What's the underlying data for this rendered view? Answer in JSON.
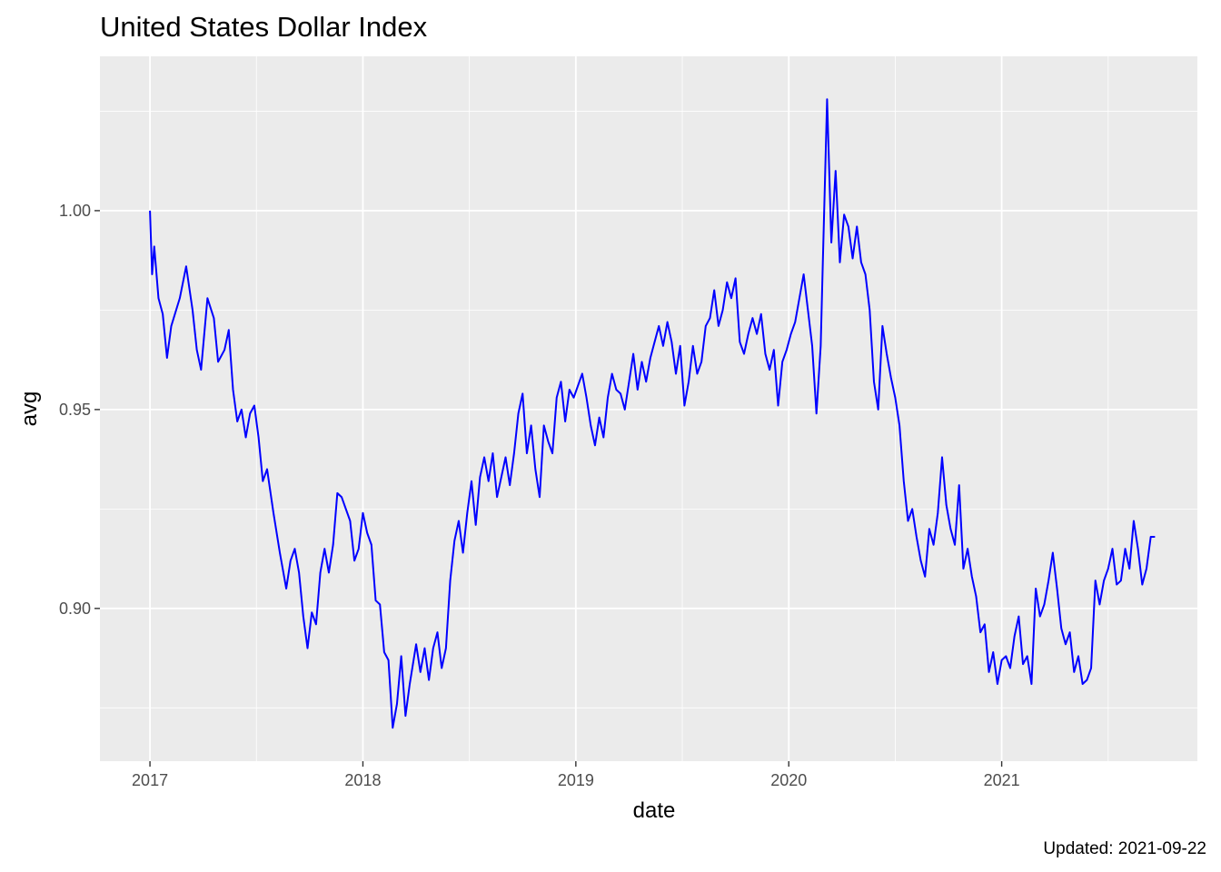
{
  "chart_data": {
    "type": "line",
    "title": "United States Dollar Index",
    "caption": "Updated: 2021-09-22",
    "xlabel": "date",
    "ylabel": "avg",
    "color": "#0000ff",
    "grid": true,
    "xlim": [
      2016.765,
      2021.919
    ],
    "ylim": [
      0.8616,
      1.0388
    ],
    "xticks": [
      2017,
      2018,
      2019,
      2020,
      2021
    ],
    "yticks": [
      {
        "value": 0.9,
        "label": "0.90"
      },
      0.95,
      {
        "value": 1.0,
        "label": "1.00"
      }
    ],
    "x": [
      2017.0,
      2017.01,
      2017.02,
      2017.04,
      2017.06,
      2017.08,
      2017.1,
      2017.14,
      2017.17,
      2017.2,
      2017.22,
      2017.24,
      2017.27,
      2017.3,
      2017.32,
      2017.35,
      2017.37,
      2017.39,
      2017.41,
      2017.43,
      2017.45,
      2017.47,
      2017.49,
      2017.51,
      2017.53,
      2017.55,
      2017.58,
      2017.61,
      2017.64,
      2017.66,
      2017.68,
      2017.7,
      2017.72,
      2017.74,
      2017.76,
      2017.78,
      2017.8,
      2017.82,
      2017.84,
      2017.86,
      2017.88,
      2017.9,
      2017.92,
      2017.94,
      2017.96,
      2017.98,
      2018.0,
      2018.02,
      2018.04,
      2018.06,
      2018.08,
      2018.1,
      2018.12,
      2018.14,
      2018.16,
      2018.18,
      2018.2,
      2018.22,
      2018.25,
      2018.27,
      2018.29,
      2018.31,
      2018.33,
      2018.35,
      2018.37,
      2018.39,
      2018.41,
      2018.43,
      2018.45,
      2018.47,
      2018.49,
      2018.51,
      2018.53,
      2018.55,
      2018.57,
      2018.59,
      2018.61,
      2018.63,
      2018.65,
      2018.67,
      2018.69,
      2018.71,
      2018.73,
      2018.75,
      2018.77,
      2018.79,
      2018.81,
      2018.83,
      2018.85,
      2018.87,
      2018.89,
      2018.91,
      2018.93,
      2018.95,
      2018.97,
      2018.99,
      2019.01,
      2019.03,
      2019.05,
      2019.07,
      2019.09,
      2019.11,
      2019.13,
      2019.15,
      2019.17,
      2019.19,
      2019.21,
      2019.23,
      2019.25,
      2019.27,
      2019.29,
      2019.31,
      2019.33,
      2019.35,
      2019.37,
      2019.39,
      2019.41,
      2019.43,
      2019.45,
      2019.47,
      2019.49,
      2019.51,
      2019.53,
      2019.55,
      2019.57,
      2019.59,
      2019.61,
      2019.63,
      2019.65,
      2019.67,
      2019.69,
      2019.71,
      2019.73,
      2019.75,
      2019.77,
      2019.79,
      2019.81,
      2019.83,
      2019.85,
      2019.87,
      2019.89,
      2019.91,
      2019.93,
      2019.95,
      2019.97,
      2019.99,
      2020.01,
      2020.03,
      2020.05,
      2020.07,
      2020.09,
      2020.11,
      2020.13,
      2020.15,
      2020.16,
      2020.18,
      2020.2,
      2020.22,
      2020.24,
      2020.26,
      2020.28,
      2020.3,
      2020.32,
      2020.34,
      2020.36,
      2020.38,
      2020.4,
      2020.42,
      2020.44,
      2020.46,
      2020.48,
      2020.5,
      2020.52,
      2020.54,
      2020.56,
      2020.58,
      2020.6,
      2020.62,
      2020.64,
      2020.66,
      2020.68,
      2020.7,
      2020.72,
      2020.74,
      2020.76,
      2020.78,
      2020.8,
      2020.82,
      2020.84,
      2020.86,
      2020.88,
      2020.9,
      2020.92,
      2020.94,
      2020.96,
      2020.98,
      2021.0,
      2021.02,
      2021.04,
      2021.06,
      2021.08,
      2021.1,
      2021.12,
      2021.14,
      2021.16,
      2021.18,
      2021.2,
      2021.22,
      2021.24,
      2021.26,
      2021.28,
      2021.3,
      2021.32,
      2021.34,
      2021.36,
      2021.38,
      2021.4,
      2021.42,
      2021.44,
      2021.46,
      2021.48,
      2021.5,
      2021.52,
      2021.54,
      2021.56,
      2021.58,
      2021.6,
      2021.62,
      2021.64,
      2021.66,
      2021.68,
      2021.7,
      2021.72
    ],
    "values": [
      1.0,
      0.984,
      0.991,
      0.978,
      0.974,
      0.963,
      0.971,
      0.978,
      0.986,
      0.975,
      0.965,
      0.96,
      0.978,
      0.973,
      0.962,
      0.965,
      0.97,
      0.955,
      0.947,
      0.95,
      0.943,
      0.949,
      0.951,
      0.943,
      0.932,
      0.935,
      0.924,
      0.914,
      0.905,
      0.912,
      0.915,
      0.909,
      0.898,
      0.89,
      0.899,
      0.896,
      0.909,
      0.915,
      0.909,
      0.916,
      0.929,
      0.928,
      0.925,
      0.922,
      0.912,
      0.915,
      0.924,
      0.919,
      0.916,
      0.902,
      0.901,
      0.889,
      0.887,
      0.87,
      0.876,
      0.888,
      0.873,
      0.881,
      0.891,
      0.884,
      0.89,
      0.882,
      0.89,
      0.894,
      0.885,
      0.89,
      0.907,
      0.917,
      0.922,
      0.914,
      0.924,
      0.932,
      0.921,
      0.933,
      0.938,
      0.932,
      0.939,
      0.928,
      0.933,
      0.938,
      0.931,
      0.939,
      0.949,
      0.954,
      0.939,
      0.946,
      0.935,
      0.928,
      0.946,
      0.942,
      0.939,
      0.953,
      0.957,
      0.947,
      0.955,
      0.953,
      0.956,
      0.959,
      0.953,
      0.946,
      0.941,
      0.948,
      0.943,
      0.953,
      0.959,
      0.955,
      0.954,
      0.95,
      0.957,
      0.964,
      0.955,
      0.962,
      0.957,
      0.963,
      0.967,
      0.971,
      0.966,
      0.972,
      0.967,
      0.959,
      0.966,
      0.951,
      0.957,
      0.966,
      0.959,
      0.962,
      0.971,
      0.973,
      0.98,
      0.971,
      0.975,
      0.982,
      0.978,
      0.983,
      0.967,
      0.964,
      0.969,
      0.973,
      0.969,
      0.974,
      0.964,
      0.96,
      0.965,
      0.951,
      0.962,
      0.965,
      0.969,
      0.972,
      0.978,
      0.984,
      0.975,
      0.966,
      0.949,
      0.966,
      0.987,
      1.028,
      0.992,
      1.01,
      0.987,
      0.999,
      0.996,
      0.988,
      0.996,
      0.987,
      0.984,
      0.975,
      0.957,
      0.95,
      0.971,
      0.964,
      0.958,
      0.953,
      0.946,
      0.932,
      0.922,
      0.925,
      0.918,
      0.912,
      0.908,
      0.92,
      0.916,
      0.924,
      0.938,
      0.926,
      0.92,
      0.916,
      0.931,
      0.91,
      0.915,
      0.908,
      0.903,
      0.894,
      0.896,
      0.884,
      0.889,
      0.881,
      0.887,
      0.888,
      0.885,
      0.893,
      0.898,
      0.886,
      0.888,
      0.881,
      0.905,
      0.898,
      0.901,
      0.907,
      0.914,
      0.905,
      0.895,
      0.891,
      0.894,
      0.884,
      0.888,
      0.881,
      0.882,
      0.885,
      0.907,
      0.901,
      0.907,
      0.91,
      0.915,
      0.906,
      0.907,
      0.915,
      0.91,
      0.922,
      0.915,
      0.906,
      0.91,
      0.918,
      0.918
    ]
  }
}
